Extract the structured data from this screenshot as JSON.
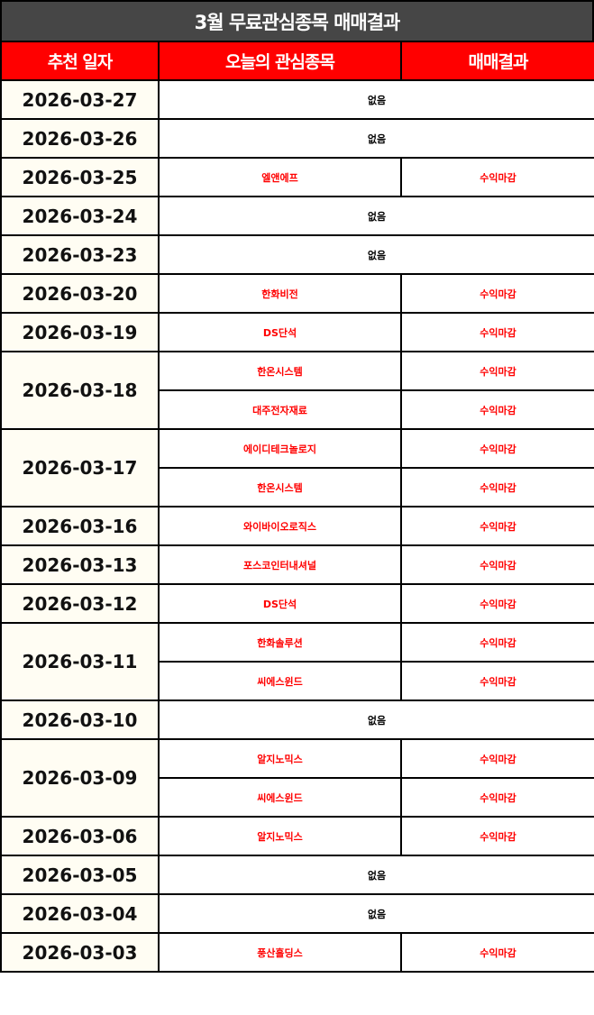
{
  "title": "3월 무료관심종목 매매결과",
  "headers": {
    "date": "추천 일자",
    "stock": "오늘의 관심종목",
    "result": "매매결과"
  },
  "colors": {
    "title_bg": "#464646",
    "header_bg": "#ff0000",
    "date_bg": "#fffdf3",
    "stock_text": "#ff0000"
  },
  "rows": [
    {
      "date": "2026-03-27",
      "none": "없음"
    },
    {
      "date": "2026-03-26",
      "none": "없음"
    },
    {
      "date": "2026-03-25",
      "items": [
        {
          "stock": "엘앤에프",
          "result": "수익마감"
        }
      ]
    },
    {
      "date": "2026-03-24",
      "none": "없음"
    },
    {
      "date": "2026-03-23",
      "none": "없음"
    },
    {
      "date": "2026-03-20",
      "items": [
        {
          "stock": "한화비전",
          "result": "수익마감"
        }
      ]
    },
    {
      "date": "2026-03-19",
      "items": [
        {
          "stock": "DS단석",
          "result": "수익마감"
        }
      ]
    },
    {
      "date": "2026-03-18",
      "items": [
        {
          "stock": "한온시스템",
          "result": "수익마감"
        },
        {
          "stock": "대주전자재료",
          "result": "수익마감"
        }
      ]
    },
    {
      "date": "2026-03-17",
      "items": [
        {
          "stock": "에이디테크놀로지",
          "result": "수익마감"
        },
        {
          "stock": "한온시스템",
          "result": "수익마감"
        }
      ]
    },
    {
      "date": "2026-03-16",
      "items": [
        {
          "stock": "와이바이오로직스",
          "result": "수익마감"
        }
      ]
    },
    {
      "date": "2026-03-13",
      "items": [
        {
          "stock": "포스코인터내셔널",
          "result": "수익마감"
        }
      ]
    },
    {
      "date": "2026-03-12",
      "items": [
        {
          "stock": "DS단석",
          "result": "수익마감"
        }
      ]
    },
    {
      "date": "2026-03-11",
      "items": [
        {
          "stock": "한화솔루션",
          "result": "수익마감"
        },
        {
          "stock": "씨에스윈드",
          "result": "수익마감"
        }
      ]
    },
    {
      "date": "2026-03-10",
      "none": "없음"
    },
    {
      "date": "2026-03-09",
      "items": [
        {
          "stock": "알지노믹스",
          "result": "수익마감"
        },
        {
          "stock": "씨에스윈드",
          "result": "수익마감"
        }
      ]
    },
    {
      "date": "2026-03-06",
      "items": [
        {
          "stock": "알지노믹스",
          "result": "수익마감"
        }
      ]
    },
    {
      "date": "2026-03-05",
      "none": "없음"
    },
    {
      "date": "2026-03-04",
      "none": "없음"
    },
    {
      "date": "2026-03-03",
      "items": [
        {
          "stock": "풍산홀딩스",
          "result": "수익마감"
        }
      ]
    }
  ]
}
